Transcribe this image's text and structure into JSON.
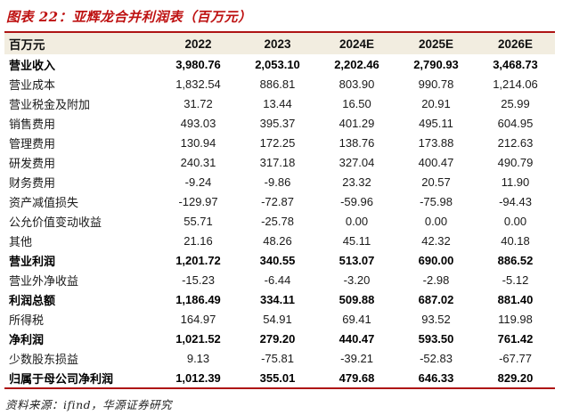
{
  "title": "图表 22：亚辉龙合并利润表（百万元）",
  "colors": {
    "accent_red": "#be1212",
    "rule_red": "#ae1414",
    "header_beige": "#f2ede0"
  },
  "table": {
    "unit_header": "百万元",
    "columns": [
      "2022",
      "2023",
      "2024E",
      "2025E",
      "2026E"
    ],
    "rows": [
      {
        "label": "营业收入",
        "bold": true,
        "values": [
          "3,980.76",
          "2,053.10",
          "2,202.46",
          "2,790.93",
          "3,468.73"
        ]
      },
      {
        "label": "营业成本",
        "bold": false,
        "values": [
          "1,832.54",
          "886.81",
          "803.90",
          "990.78",
          "1,214.06"
        ]
      },
      {
        "label": "营业税金及附加",
        "bold": false,
        "values": [
          "31.72",
          "13.44",
          "16.50",
          "20.91",
          "25.99"
        ]
      },
      {
        "label": "销售费用",
        "bold": false,
        "values": [
          "493.03",
          "395.37",
          "401.29",
          "495.11",
          "604.95"
        ]
      },
      {
        "label": "管理费用",
        "bold": false,
        "values": [
          "130.94",
          "172.25",
          "138.76",
          "173.88",
          "212.63"
        ]
      },
      {
        "label": "研发费用",
        "bold": false,
        "values": [
          "240.31",
          "317.18",
          "327.04",
          "400.47",
          "490.79"
        ]
      },
      {
        "label": "财务费用",
        "bold": false,
        "values": [
          "-9.24",
          "-9.86",
          "23.32",
          "20.57",
          "11.90"
        ]
      },
      {
        "label": "资产减值损失",
        "bold": false,
        "values": [
          "-129.97",
          "-72.87",
          "-59.96",
          "-75.98",
          "-94.43"
        ]
      },
      {
        "label": "公允价值变动收益",
        "bold": false,
        "values": [
          "55.71",
          "-25.78",
          "0.00",
          "0.00",
          "0.00"
        ]
      },
      {
        "label": "其他",
        "bold": false,
        "values": [
          "21.16",
          "48.26",
          "45.11",
          "42.32",
          "40.18"
        ]
      },
      {
        "label": "营业利润",
        "bold": true,
        "values": [
          "1,201.72",
          "340.55",
          "513.07",
          "690.00",
          "886.52"
        ]
      },
      {
        "label": "营业外净收益",
        "bold": false,
        "values": [
          "-15.23",
          "-6.44",
          "-3.20",
          "-2.98",
          "-5.12"
        ]
      },
      {
        "label": "利润总额",
        "bold": true,
        "values": [
          "1,186.49",
          "334.11",
          "509.88",
          "687.02",
          "881.40"
        ]
      },
      {
        "label": "所得税",
        "bold": false,
        "values": [
          "164.97",
          "54.91",
          "69.41",
          "93.52",
          "119.98"
        ]
      },
      {
        "label": "净利润",
        "bold": true,
        "values": [
          "1,021.52",
          "279.20",
          "440.47",
          "593.50",
          "761.42"
        ]
      },
      {
        "label": "少数股东损益",
        "bold": false,
        "values": [
          "9.13",
          "-75.81",
          "-39.21",
          "-52.83",
          "-67.77"
        ]
      },
      {
        "label": "归属于母公司净利润",
        "bold": true,
        "values": [
          "1,012.39",
          "355.01",
          "479.68",
          "646.33",
          "829.20"
        ]
      }
    ]
  },
  "footer": "资料来源：ifind，华源证券研究"
}
